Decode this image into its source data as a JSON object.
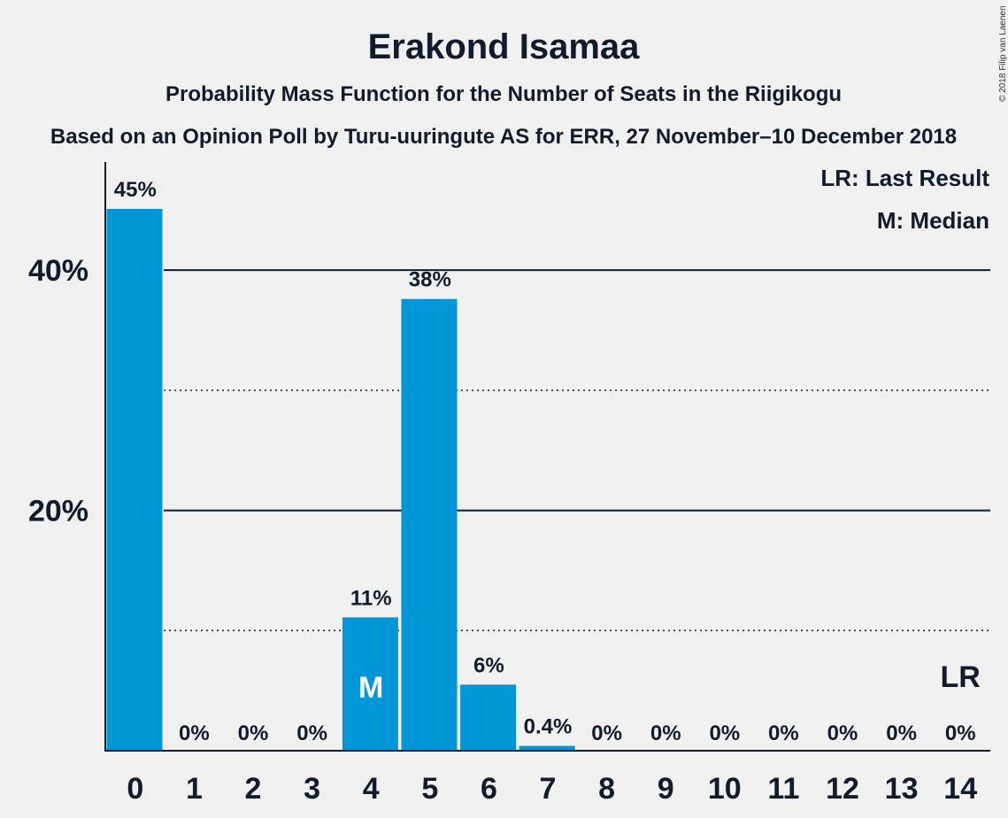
{
  "chart_data": {
    "type": "bar",
    "title": "Erakond Isamaa",
    "subtitle": "Probability Mass Function for the Number of Seats in the Riigikogu",
    "subtitle2": "Based on an Opinion Poll by Turu-uuringute AS for ERR, 27 November–10 December 2018",
    "copyright": "© 2018 Filip van Laenen",
    "legend": [
      "LR: Last Result",
      "M: Median"
    ],
    "categories": [
      "0",
      "1",
      "2",
      "3",
      "4",
      "5",
      "6",
      "7",
      "8",
      "9",
      "10",
      "11",
      "12",
      "13",
      "14"
    ],
    "values": [
      45.1,
      0,
      0,
      0,
      11.1,
      37.6,
      5.5,
      0.4,
      0,
      0,
      0,
      0,
      0,
      0,
      0
    ],
    "data_labels": [
      "45%",
      "0%",
      "0%",
      "0%",
      "11%",
      "38%",
      "6%",
      "0.4%",
      "0%",
      "0%",
      "0%",
      "0%",
      "0%",
      "0%",
      "0%"
    ],
    "ytick_labels": [
      "20%",
      "40%"
    ],
    "ytick_values": [
      20,
      40
    ],
    "minor_grid": [
      10,
      30
    ],
    "ylim": [
      0,
      49
    ],
    "median_index": 4,
    "median_label": "M",
    "last_result_index": 14,
    "last_result_label": "LR",
    "bar_color": "#0096d8",
    "text_color": "#111b2b",
    "background": "#f0f0f0"
  }
}
